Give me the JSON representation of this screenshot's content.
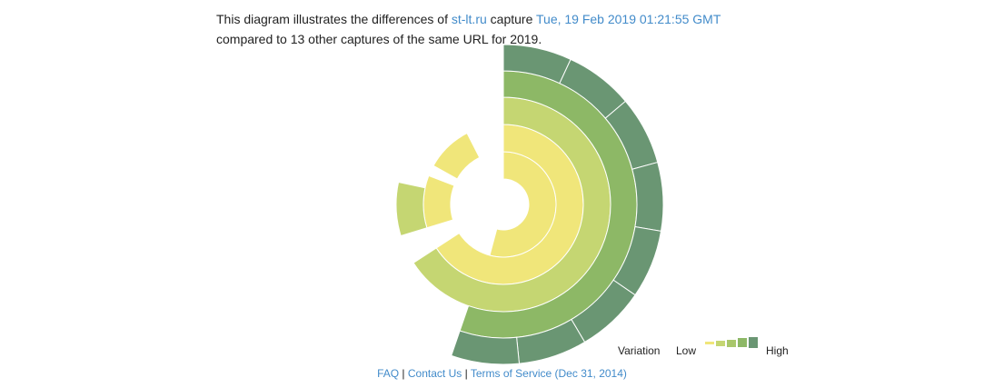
{
  "intro": {
    "text_before": "This diagram illustrates the differences of ",
    "site_link": "st-lt.ru",
    "text_middle": " capture ",
    "timestamp_link": "Tue, 19 Feb 2019 01:21:55 GMT",
    "text_after": "compared to 13 other captures of the same URL for 2019."
  },
  "chart_data": {
    "type": "sunburst",
    "unit": "degrees",
    "ring_colors": [
      "#f0e67a",
      "#c5d672",
      "#8db866",
      "#6a9673"
    ],
    "rings": [
      {
        "level": 1,
        "segments": [
          {
            "start": 0,
            "end": 195
          }
        ]
      },
      {
        "level": 2,
        "segments": [
          {
            "start": 0,
            "end": 237
          },
          {
            "start": 253,
            "end": 291
          },
          {
            "start": 299,
            "end": 333
          }
        ]
      },
      {
        "level": 3,
        "segments": [
          {
            "start": 0,
            "end": 237
          },
          {
            "start": 253,
            "end": 282
          }
        ]
      },
      {
        "level": 4,
        "segments": [
          {
            "start": 0,
            "end": 199
          }
        ]
      },
      {
        "level": 5,
        "segments": [
          {
            "start": 0,
            "end": 24.9
          },
          {
            "start": 24.9,
            "end": 49.8
          },
          {
            "start": 49.8,
            "end": 74.7
          },
          {
            "start": 74.7,
            "end": 99.6
          },
          {
            "start": 99.6,
            "end": 124.5
          },
          {
            "start": 124.5,
            "end": 149.4
          },
          {
            "start": 149.4,
            "end": 174.3
          },
          {
            "start": 174.3,
            "end": 199
          }
        ]
      }
    ],
    "ring_color_index": [
      0,
      0,
      1,
      2,
      3
    ],
    "legend": {
      "title": "Variation",
      "low": "Low",
      "high": "High",
      "colors": [
        "#f0e67a",
        "#c5d672",
        "#a9c76b",
        "#8db866",
        "#6a9673"
      ]
    }
  },
  "footer": {
    "faq": "FAQ",
    "sep1": " | ",
    "contact": "Contact Us",
    "sep2": " | ",
    "terms": "Terms of Service (Dec 31, 2014)"
  }
}
